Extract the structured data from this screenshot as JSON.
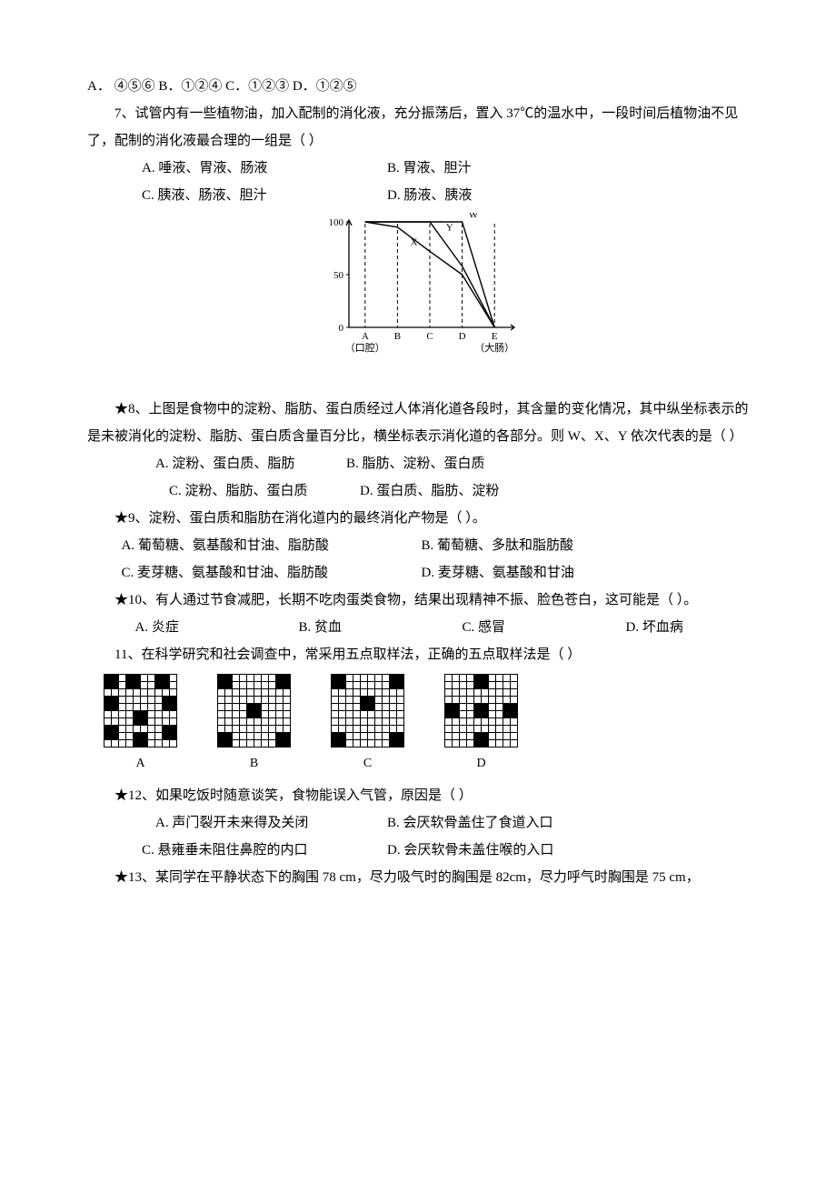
{
  "q6": {
    "options_line": "A．  ④⑤⑥        B．①②④        C．①②③    D．①②⑤"
  },
  "q7": {
    "stem": "7、试管内有一些植物油，加入配制的消化液，充分振荡后，置入 37℃的温水中，一段时间后植物油不见了，配制的消化液最合理的一组是（      ）",
    "optA": "A.  唾液、胃液、肠液",
    "optB": "B.  胃液、胆汁",
    "optC": "C.  胰液、肠液、胆汁",
    "optD": "D.  肠液、胰液"
  },
  "digestion_chart": {
    "type": "line",
    "xlabels": [
      "A",
      "B",
      "C",
      "D",
      "E"
    ],
    "xsublabels_left": "（口腔）",
    "xsublabels_right": "（大肠）",
    "yticks": [
      0,
      50,
      100
    ],
    "ylim": [
      0,
      100
    ],
    "xlim": [
      0,
      5
    ],
    "series": {
      "X": {
        "label": "X",
        "points": [
          [
            0,
            100
          ],
          [
            1,
            95
          ],
          [
            2,
            72
          ],
          [
            3,
            50
          ],
          [
            4,
            0
          ]
        ]
      },
      "Y": {
        "label": "Y",
        "points": [
          [
            0,
            100
          ],
          [
            1,
            100
          ],
          [
            2,
            100
          ],
          [
            3,
            58
          ],
          [
            4,
            0
          ]
        ]
      },
      "W": {
        "label": "W",
        "points": [
          [
            0,
            100
          ],
          [
            1,
            100
          ],
          [
            2,
            100
          ],
          [
            3,
            100
          ],
          [
            4,
            0
          ]
        ]
      }
    },
    "line_color": "#000000",
    "axis_color": "#000000",
    "grid_dash": "4 3",
    "label_fontsize": 11
  },
  "q8": {
    "stem": "★8、上图是食物中的淀粉、脂肪、蛋白质经过人体消化道各段时，其含量的变化情况，其中纵坐标表示的是未被消化的淀粉、脂肪、蛋白质含量百分比，横坐标表示消化道的各部分。则 W、X、Y 依次代表的是（      ）",
    "optA": "A. 淀粉、蛋白质、脂肪",
    "optB": "B. 脂肪、淀粉、蛋白质",
    "optC": "C. 淀粉、脂肪、蛋白质",
    "optD": "D. 蛋白质、脂肪、淀粉"
  },
  "q9": {
    "stem": "★9、淀粉、蛋白质和脂肪在消化道内的最终消化产物是（  ）。",
    "optA": "A. 葡萄糖、氨基酸和甘油、脂肪酸",
    "optB": "B. 葡萄糖、多肽和脂肪酸",
    "optC": "C. 麦芽糖、氨基酸和甘油、脂肪酸",
    "optD": "D. 麦芽糖、氨基酸和甘油"
  },
  "q10": {
    "stem": "★10、有人通过节食减肥，长期不吃肉蛋类食物，结果出现精神不振、脸色苍白，这可能是（  ）。",
    "optA": "A.  炎症",
    "optB": "B.  贫血",
    "optC": "C.  感冒",
    "optD": "D.  坏血病"
  },
  "q11": {
    "stem": "11、在科学研究和社会调查中，常采用五点取样法，正确的五点取样法是（       ）"
  },
  "sampling": {
    "type": "grid",
    "cell_size": 8,
    "grid": 10,
    "fill_color": "#000000",
    "bg_color": "#ffffff",
    "A": {
      "label": "A",
      "blocks": [
        [
          0,
          0
        ],
        [
          0,
          3
        ],
        [
          0,
          7
        ],
        [
          3,
          0
        ],
        [
          3,
          8
        ],
        [
          5,
          4
        ],
        [
          7,
          0
        ],
        [
          7,
          8
        ],
        [
          8,
          4
        ]
      ]
    },
    "B": {
      "label": "B",
      "blocks": [
        [
          0,
          0
        ],
        [
          0,
          8
        ],
        [
          4,
          4
        ],
        [
          8,
          0
        ],
        [
          8,
          8
        ]
      ]
    },
    "C": {
      "label": "C",
      "blocks": [
        [
          0,
          0
        ],
        [
          0,
          8
        ],
        [
          3,
          4
        ],
        [
          8,
          0
        ],
        [
          8,
          8
        ]
      ]
    },
    "D": {
      "label": "D",
      "blocks": [
        [
          0,
          4
        ],
        [
          4,
          0
        ],
        [
          4,
          4
        ],
        [
          4,
          8
        ],
        [
          8,
          4
        ]
      ]
    }
  },
  "q12": {
    "stem": "★12、如果吃饭时随意谈笑，食物能误入气管，原因是（     ）",
    "optA": "A.  声门裂开未来得及关闭",
    "optB": "B.  会厌软骨盖住了食道入口",
    "optC": "C.  悬雍垂未阻住鼻腔的内口",
    "optD": "D.  会厌软骨未盖住喉的入口"
  },
  "q13": {
    "stem": "★13、某同学在平静状态下的胸围 78 cm，尽力吸气时的胸围是 82cm，尽力呼气时胸围是 75 cm，"
  }
}
